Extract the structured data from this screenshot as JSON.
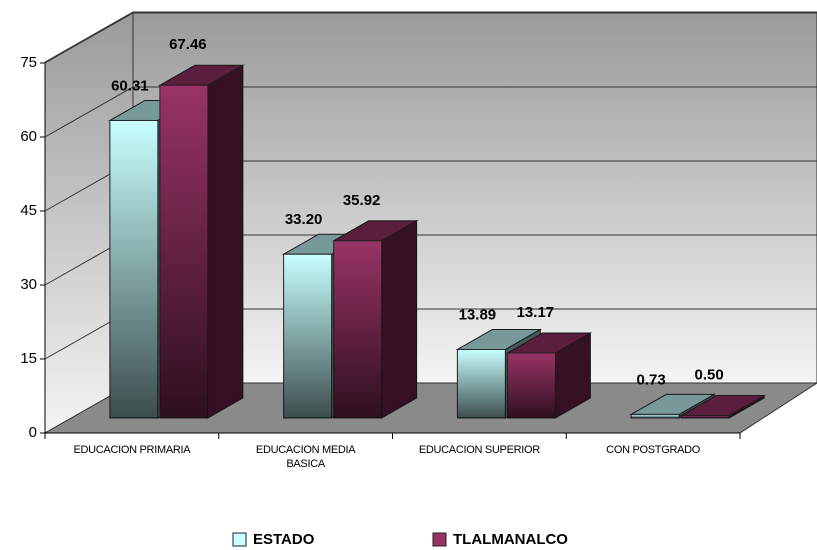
{
  "chart_data": {
    "type": "bar3d",
    "categories": [
      "EDUCACION PRIMARIA",
      "EDUCACION MEDIA BASICA",
      "EDUCACION SUPERIOR",
      "CON POSTGRADO"
    ],
    "series": [
      {
        "name": "ESTADO",
        "color": "#c8ffff",
        "values": [
          60.31,
          33.2,
          13.89,
          0.73
        ],
        "value_labels": [
          "60.31",
          "33.20",
          "13.89",
          "0.73"
        ]
      },
      {
        "name": "TLALMANALCO",
        "color": "#993366",
        "values": [
          67.46,
          35.92,
          13.17,
          0.5
        ],
        "value_labels": [
          "67.46",
          "35.92",
          "13.17",
          "0.50"
        ]
      }
    ],
    "ylim": [
      0,
      75
    ],
    "yticks": [
      0,
      15,
      30,
      45,
      60,
      75
    ],
    "grid": true,
    "legend": "bottom"
  }
}
